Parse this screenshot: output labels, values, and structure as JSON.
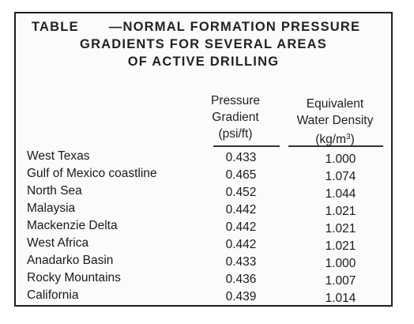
{
  "table": {
    "title_label": "TABLE",
    "title_line1": "—NORMAL FORMATION PRESSURE",
    "title_line2": "GRADIENTS FOR SEVERAL AREAS",
    "title_line3": "OF ACTIVE DRILLING",
    "columns": {
      "gradient": {
        "line1": "Pressure",
        "line2": "Gradient",
        "line3": "(psi/ft)"
      },
      "density": {
        "line1": "Equivalent",
        "line2": "Water Density",
        "line3_base": "(kg/m",
        "line3_sup": "3",
        "line3_end": ")"
      }
    },
    "rows": [
      {
        "area": "West Texas",
        "gradient": "0.433",
        "density": "1.000"
      },
      {
        "area": "Gulf of Mexico coastline",
        "gradient": "0.465",
        "density": "1.074"
      },
      {
        "area": "North Sea",
        "gradient": "0.452",
        "density": "1.044"
      },
      {
        "area": "Malaysia",
        "gradient": "0.442",
        "density": "1.021"
      },
      {
        "area": "Mackenzie Delta",
        "gradient": "0.442",
        "density": "1.021"
      },
      {
        "area": "West Africa",
        "gradient": "0.442",
        "density": "1.021"
      },
      {
        "area": "Anadarko Basin",
        "gradient": "0.433",
        "density": "1.000"
      },
      {
        "area": "Rocky Mountains",
        "gradient": "0.436",
        "density": "1.007"
      },
      {
        "area": "California",
        "gradient": "0.439",
        "density": "1.014"
      }
    ]
  }
}
